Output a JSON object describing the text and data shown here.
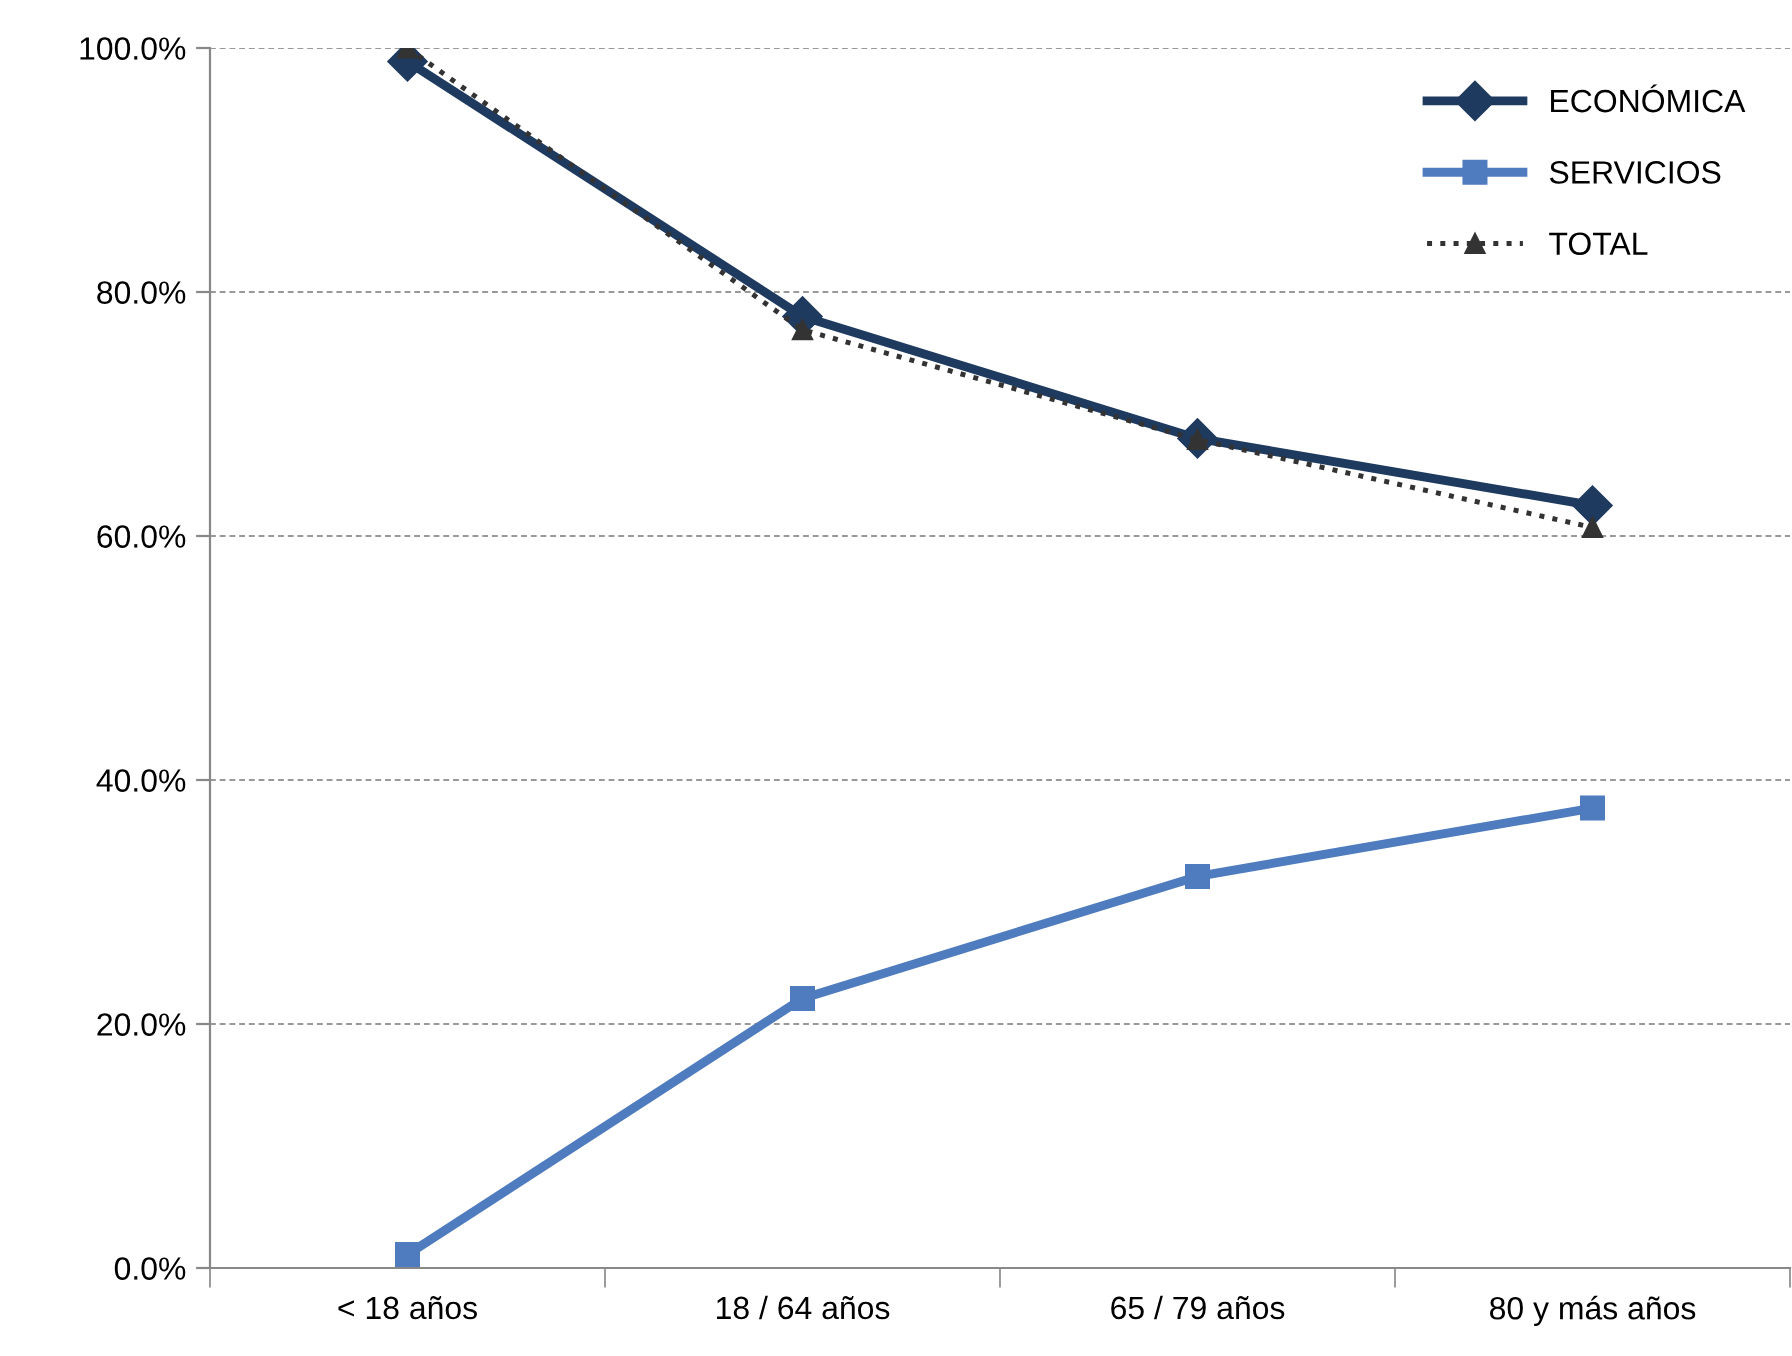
{
  "chart_data": {
    "type": "line",
    "categories": [
      "< 18 años",
      "18 / 64 años",
      "65 / 79 años",
      "80 y más años"
    ],
    "series": [
      {
        "name": "ECONÓMICA",
        "color": "#1f3a5f",
        "values": [
          98.9,
          78.0,
          68.0,
          62.5
        ],
        "marker": "diamond",
        "line_style": "solid"
      },
      {
        "name": "SERVICIOS",
        "color": "#4f7bbf",
        "values": [
          1.1,
          22.1,
          32.1,
          37.7
        ],
        "marker": "square",
        "line_style": "solid"
      },
      {
        "name": "TOTAL",
        "color": "#333333",
        "values": [
          100.0,
          76.9,
          67.9,
          60.7
        ],
        "marker": "triangle",
        "line_style": "dotted"
      }
    ],
    "ylim": [
      0,
      100
    ],
    "yticks": [
      {
        "value": 0,
        "label": "0.0%"
      },
      {
        "value": 20,
        "label": "20.0%"
      },
      {
        "value": 40,
        "label": "40.0%"
      },
      {
        "value": 60,
        "label": "60.0%"
      },
      {
        "value": 80,
        "label": "80.0%"
      },
      {
        "value": 100,
        "label": "100.0%"
      }
    ],
    "grid": "y",
    "legend": "top right"
  }
}
